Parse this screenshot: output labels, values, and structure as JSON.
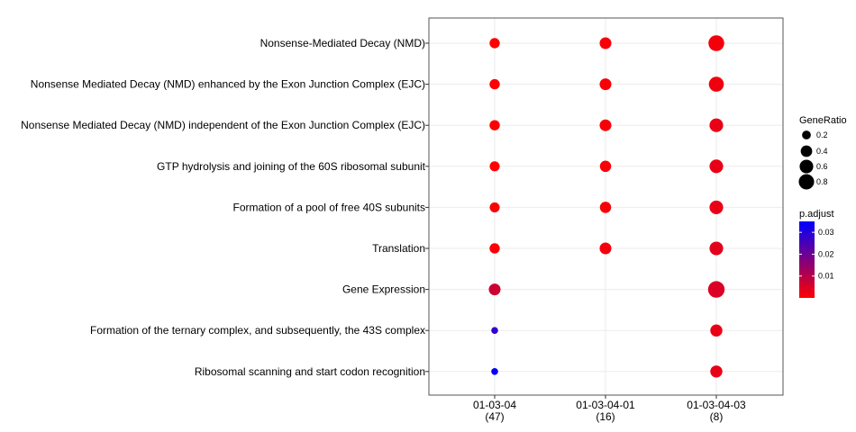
{
  "chart_data": {
    "type": "scatter",
    "categories_y": [
      "Nonsense-Mediated Decay (NMD)",
      "Nonsense Mediated Decay (NMD) enhanced by the Exon Junction Complex (EJC)",
      "Nonsense Mediated Decay (NMD) independent of the Exon Junction Complex (EJC)",
      "GTP hydrolysis and joining of the 60S ribosomal subunit",
      "Formation of a pool of free 40S subunits",
      "Translation",
      "Gene Expression",
      "Formation of the ternary complex, and subsequently, the 43S complex",
      "Ribosomal scanning and start codon recognition"
    ],
    "categories_x": [
      {
        "name": "01-03-04",
        "count": "(47)"
      },
      {
        "name": "01-03-04-01",
        "count": "(16)"
      },
      {
        "name": "01-03-04-03",
        "count": "(8)"
      }
    ],
    "points": [
      {
        "x": "01-03-04",
        "y": "Nonsense-Mediated Decay (NMD)",
        "gene_ratio": 0.3,
        "p_adjust": 0.0002
      },
      {
        "x": "01-03-04",
        "y": "Nonsense Mediated Decay (NMD) enhanced by the Exon Junction Complex (EJC)",
        "gene_ratio": 0.3,
        "p_adjust": 0.0002
      },
      {
        "x": "01-03-04",
        "y": "Nonsense Mediated Decay (NMD) independent of the Exon Junction Complex (EJC)",
        "gene_ratio": 0.3,
        "p_adjust": 0.0002
      },
      {
        "x": "01-03-04",
        "y": "GTP hydrolysis and joining of the 60S ribosomal subunit",
        "gene_ratio": 0.28,
        "p_adjust": 0.0002
      },
      {
        "x": "01-03-04",
        "y": "Formation of a pool of free 40S subunits",
        "gene_ratio": 0.28,
        "p_adjust": 0.0002
      },
      {
        "x": "01-03-04",
        "y": "Translation",
        "gene_ratio": 0.3,
        "p_adjust": 0.0005
      },
      {
        "x": "01-03-04",
        "y": "Gene Expression",
        "gene_ratio": 0.42,
        "p_adjust": 0.007
      },
      {
        "x": "01-03-04",
        "y": "Formation of the ternary complex, and subsequently, the 43S complex",
        "gene_ratio": 0.1,
        "p_adjust": 0.028
      },
      {
        "x": "01-03-04",
        "y": "Ribosomal scanning and start codon recognition",
        "gene_ratio": 0.1,
        "p_adjust": 0.034
      },
      {
        "x": "01-03-04-01",
        "y": "Nonsense-Mediated Decay (NMD)",
        "gene_ratio": 0.42,
        "p_adjust": 0.001
      },
      {
        "x": "01-03-04-01",
        "y": "Nonsense Mediated Decay (NMD) enhanced by the Exon Junction Complex (EJC)",
        "gene_ratio": 0.42,
        "p_adjust": 0.001
      },
      {
        "x": "01-03-04-01",
        "y": "Nonsense Mediated Decay (NMD) independent of the Exon Junction Complex (EJC)",
        "gene_ratio": 0.42,
        "p_adjust": 0.001
      },
      {
        "x": "01-03-04-01",
        "y": "GTP hydrolysis and joining of the 60S ribosomal subunit",
        "gene_ratio": 0.38,
        "p_adjust": 0.001
      },
      {
        "x": "01-03-04-01",
        "y": "Formation of a pool of free 40S subunits",
        "gene_ratio": 0.38,
        "p_adjust": 0.001
      },
      {
        "x": "01-03-04-01",
        "y": "Translation",
        "gene_ratio": 0.42,
        "p_adjust": 0.0015
      },
      {
        "x": "01-03-04-03",
        "y": "Nonsense-Mediated Decay (NMD)",
        "gene_ratio": 0.85,
        "p_adjust": 0.0015
      },
      {
        "x": "01-03-04-03",
        "y": "Nonsense Mediated Decay (NMD) enhanced by the Exon Junction Complex (EJC)",
        "gene_ratio": 0.75,
        "p_adjust": 0.002
      },
      {
        "x": "01-03-04-03",
        "y": "Nonsense Mediated Decay (NMD) independent of the Exon Junction Complex (EJC)",
        "gene_ratio": 0.6,
        "p_adjust": 0.003
      },
      {
        "x": "01-03-04-03",
        "y": "GTP hydrolysis and joining of the 60S ribosomal subunit",
        "gene_ratio": 0.6,
        "p_adjust": 0.003
      },
      {
        "x": "01-03-04-03",
        "y": "Formation of a pool of free 40S subunits",
        "gene_ratio": 0.6,
        "p_adjust": 0.003
      },
      {
        "x": "01-03-04-03",
        "y": "Translation",
        "gene_ratio": 0.6,
        "p_adjust": 0.004
      },
      {
        "x": "01-03-04-03",
        "y": "Gene Expression",
        "gene_ratio": 0.95,
        "p_adjust": 0.005
      },
      {
        "x": "01-03-04-03",
        "y": "Formation of the ternary complex, and subsequently, the 43S complex",
        "gene_ratio": 0.45,
        "p_adjust": 0.003
      },
      {
        "x": "01-03-04-03",
        "y": "Ribosomal scanning and start codon recognition",
        "gene_ratio": 0.45,
        "p_adjust": 0.003
      }
    ],
    "size_legend": {
      "title": "GeneRatio",
      "values": [
        0.2,
        0.4,
        0.6,
        0.8
      ],
      "labels": [
        "0.2",
        "0.4",
        "0.6",
        "0.8"
      ]
    },
    "color_legend": {
      "title": "p.adjust",
      "range": [
        0,
        0.035
      ],
      "ticks": [
        0.01,
        0.02,
        0.03
      ],
      "tick_labels": [
        "0.01",
        "0.02",
        "0.03"
      ],
      "low_color": "#FF0000",
      "high_color": "#0000FF"
    },
    "grid": true,
    "legend_position": "right",
    "panel_border_color": "#555555",
    "grid_color": "#ebebeb"
  }
}
